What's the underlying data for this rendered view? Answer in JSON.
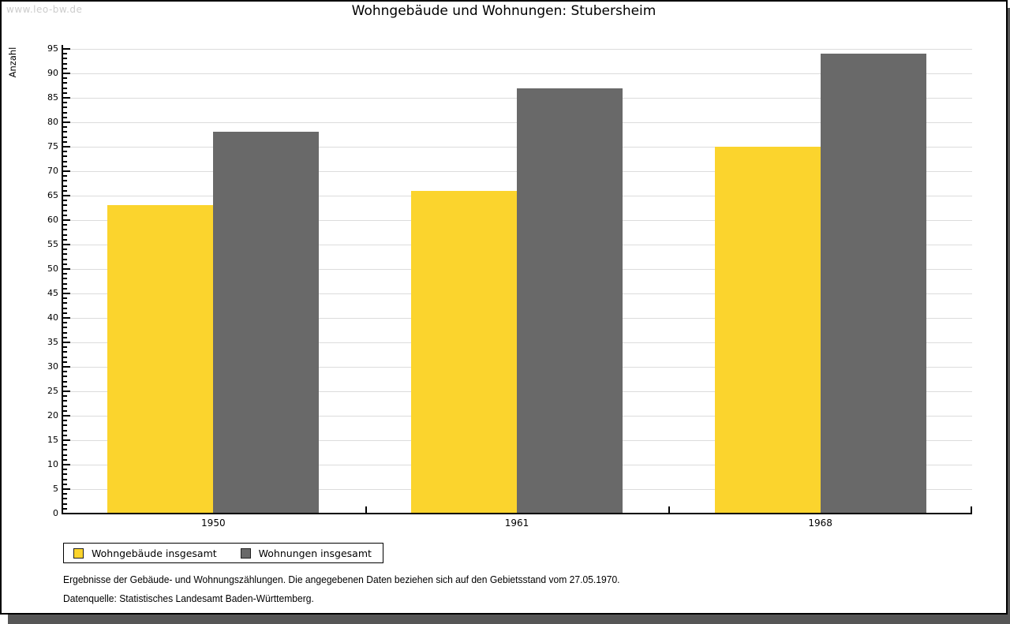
{
  "watermark": "www.leo-bw.de",
  "chart_data": {
    "type": "bar",
    "title": "Wohngebäude und Wohnungen: Stubersheim",
    "ylabel": "Anzahl",
    "xlabel": "",
    "categories": [
      "1950",
      "1961",
      "1968"
    ],
    "series": [
      {
        "name": "Wohngebäude insgesamt",
        "color": "#fbd42d",
        "values": [
          63,
          66,
          75
        ]
      },
      {
        "name": "Wohnungen insgesamt",
        "color": "#696969",
        "values": [
          78,
          87,
          94
        ]
      }
    ],
    "ylim": [
      0,
      95
    ],
    "ytick_step": 5,
    "yminor_step": 1,
    "grid": true,
    "legend_position": "bottom-left"
  },
  "footnotes": [
    "Ergebnisse der Gebäude- und Wohnungszählungen. Die angegebenen Daten beziehen sich auf den Gebietsstand vom 27.05.1970.",
    "Datenquelle: Statistisches Landesamt Baden-Württemberg."
  ],
  "colors": {
    "grid": "#dcdcdc",
    "axis": "#000000",
    "watermark": "#cccccc",
    "shadow": "#565656"
  }
}
